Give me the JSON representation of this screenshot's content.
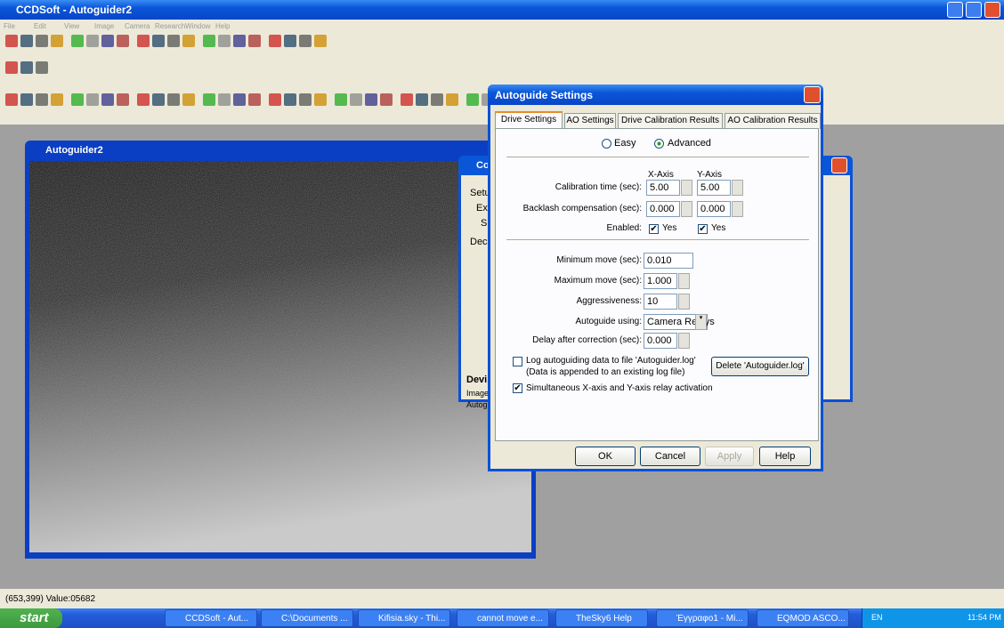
{
  "window": {
    "title": "CCDSoft - Autoguider2",
    "menu": [
      "File",
      "Edit",
      "View",
      "Image",
      "Camera",
      "Research",
      "Window",
      "Help"
    ]
  },
  "child_window": {
    "title": "Autoguider2"
  },
  "background_dialog": {
    "title": "Co",
    "labels": [
      "Setu",
      "Ex",
      "S",
      "Dec",
      "Devi",
      "Image",
      "Autog"
    ]
  },
  "dialog": {
    "title": "Autoguide Settings",
    "tabs": [
      "Drive Settings",
      "AO Settings",
      "Drive Calibration Results",
      "AO Calibration Results"
    ],
    "modes": [
      "Easy",
      "Advanced"
    ],
    "axis_headers": [
      "X-Axis",
      "Y-Axis"
    ],
    "calibration_time": {
      "label": "Calibration time (sec):",
      "x": "5.00",
      "y": "5.00"
    },
    "backlash": {
      "label": "Backlash compensation (sec):",
      "x": "0.000",
      "y": "0.000"
    },
    "enabled": {
      "label": "Enabled:",
      "x": "Yes",
      "y": "Yes"
    },
    "minimum_move": {
      "label": "Minimum move (sec):",
      "value": "0.010"
    },
    "maximum_move": {
      "label": "Maximum move (sec):",
      "value": "1.000"
    },
    "aggressiveness": {
      "label": "Aggressiveness:",
      "value": "10"
    },
    "autoguide_using": {
      "label": "Autoguide using:",
      "value": "Camera Relays"
    },
    "delay": {
      "label": "Delay after correction (sec):",
      "value": "0.000"
    },
    "log_checkbox": [
      "Log autoguiding data to file 'Autoguider.log'",
      "(Data is appended to an existing log file)"
    ],
    "delete_button": "Delete 'Autoguider.log'",
    "simultaneous_checkbox": "Simultaneous X-axis and Y-axis relay activation",
    "buttons": [
      "OK",
      "Cancel",
      "Apply",
      "Help"
    ]
  },
  "status_bar": "(653,399) Value:05682",
  "taskbar": {
    "start": "start",
    "items": [
      "CCDSoft - Aut...",
      "C:\\Documents ...",
      "Kifisia.sky - Thi...",
      "cannot move e...",
      "TheSky6 Help",
      "Έγγραφο1 - Mi...",
      "EQMOD ASCO..."
    ],
    "language": "EN",
    "clock": "11:54 PM"
  }
}
